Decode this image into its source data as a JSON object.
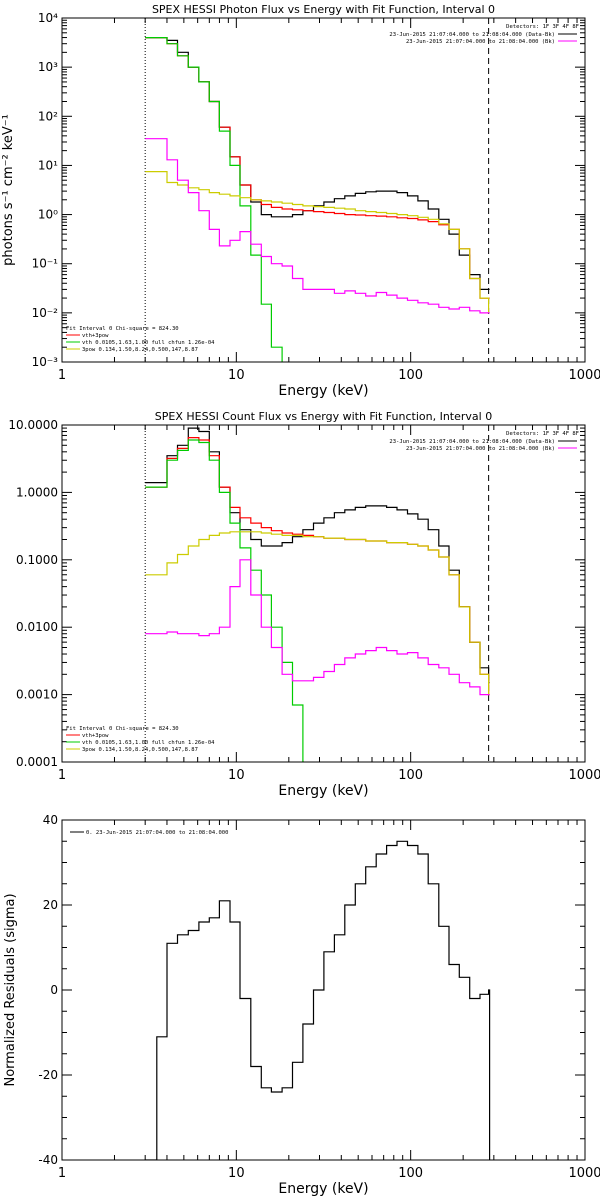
{
  "chart_data": [
    {
      "type": "line",
      "title": "SPEX HESSI Photon Flux vs Energy with Fit Function, Interval 0",
      "xlabel": "Energy (keV)",
      "ylabel": "photons s⁻¹ cm⁻² keV⁻¹",
      "xscale": "log",
      "yscale": "log",
      "xlim": [
        1,
        1000
      ],
      "ylim": [
        0.001,
        10000
      ],
      "xticks": [
        {
          "v": 1,
          "label": "1"
        },
        {
          "v": 10,
          "label": "10"
        },
        {
          "v": 100,
          "label": "100"
        },
        {
          "v": 1000,
          "label": "1000"
        }
      ],
      "yticks": [
        {
          "v": 0.001,
          "label": "10⁻³"
        },
        {
          "v": 0.01,
          "label": "10⁻²"
        },
        {
          "v": 0.1,
          "label": "10⁻¹"
        },
        {
          "v": 1,
          "label": "10⁰"
        },
        {
          "v": 10,
          "label": "10¹"
        },
        {
          "v": 100,
          "label": "10²"
        },
        {
          "v": 1000,
          "label": "10³"
        },
        {
          "v": 10000,
          "label": "10⁴"
        }
      ],
      "vlines": [
        {
          "x": 3,
          "style": "dotted"
        },
        {
          "x": 280,
          "style": "dashed"
        }
      ],
      "legend_right": {
        "placement": "top-right",
        "header": "Detectors: 1F 3F 4F 8F",
        "items": [
          {
            "text": "23-Jun-2015 21:07:04.000 to 21:08:04.000 (Data-Bk)",
            "color": "#000000"
          },
          {
            "text": "23-Jun-2015 21:07:04.000 to 21:08:04.000 (Bk)",
            "color": "#ff00ff"
          }
        ]
      },
      "legend_left": {
        "placement": "bottom-left",
        "header": "Fit Interval 0   Chi-square = 824.30",
        "items": [
          {
            "text": "vth+3pow",
            "color": "#ff0000"
          },
          {
            "text": "vth 0.0105,1.63,1.00  full chfun 1.26e-04",
            "color": "#00cc00"
          },
          {
            "text": "3pow 0.134,1.50,8.24,0.500,147,8.87",
            "color": "#cccc00"
          }
        ]
      },
      "series": [
        {
          "color": "#000000",
          "x": [
            3.0,
            3.5,
            4.0,
            4.6,
            5.3,
            6.1,
            7.0,
            8.0,
            9.2,
            10.5,
            12.1,
            13.9,
            15.9,
            18.3,
            21.0,
            24.1,
            27.7,
            31.8,
            36.5,
            41.9,
            48.1,
            55.2,
            63.4,
            72.8,
            83.5,
            95.9,
            110,
            126,
            145,
            166,
            190,
            218,
            250,
            280
          ],
          "y": [
            4000,
            4000,
            3500,
            2000,
            1000,
            500,
            200,
            60,
            15,
            4,
            1.8,
            1.0,
            0.9,
            0.9,
            1.0,
            1.2,
            1.5,
            1.8,
            2.1,
            2.4,
            2.7,
            2.9,
            3.0,
            3.0,
            2.8,
            2.4,
            1.9,
            1.3,
            0.8,
            0.4,
            0.15,
            0.06,
            0.03,
            0.03
          ]
        },
        {
          "color": "#ff0000",
          "x": [
            3.0,
            3.5,
            4.0,
            4.6,
            5.3,
            6.1,
            7.0,
            8.0,
            9.2,
            10.5,
            12.1,
            13.9,
            15.9,
            18.3,
            21.0,
            24.1,
            27.7,
            31.8,
            36.5,
            41.9,
            48.1,
            55.2,
            63.4,
            72.8,
            83.5,
            95.9,
            110,
            126,
            145,
            166,
            190,
            218,
            250,
            280
          ],
          "y": [
            4000,
            4000,
            3000,
            1700,
            1000,
            500,
            200,
            60,
            15,
            4,
            2.0,
            1.6,
            1.4,
            1.3,
            1.25,
            1.2,
            1.15,
            1.1,
            1.05,
            1.0,
            0.98,
            0.95,
            0.93,
            0.9,
            0.86,
            0.83,
            0.78,
            0.72,
            0.62,
            0.5,
            0.2,
            0.05,
            0.02,
            0.02
          ]
        },
        {
          "color": "#00cc00",
          "x": [
            3.0,
            3.5,
            4.0,
            4.6,
            5.3,
            6.1,
            7.0,
            8.0,
            9.2,
            10.5,
            12.1,
            13.9,
            15.9,
            18.3
          ],
          "y": [
            4000,
            4000,
            3000,
            1700,
            1000,
            500,
            200,
            50,
            10,
            1.5,
            0.15,
            0.015,
            0.002,
            0.0002
          ]
        },
        {
          "color": "#cccc00",
          "x": [
            3.0,
            3.5,
            4.0,
            4.6,
            5.3,
            6.1,
            7.0,
            8.0,
            9.2,
            10.5,
            12.1,
            13.9,
            15.9,
            18.3,
            21.0,
            24.1,
            27.7,
            31.8,
            36.5,
            41.9,
            48.1,
            55.2,
            63.4,
            72.8,
            83.5,
            95.9,
            110,
            126,
            145,
            166,
            190,
            218,
            250,
            280
          ],
          "y": [
            7.5,
            7.5,
            4.5,
            4.0,
            3.5,
            3.2,
            2.8,
            2.6,
            2.4,
            2.2,
            2.0,
            1.9,
            1.8,
            1.7,
            1.6,
            1.5,
            1.45,
            1.4,
            1.35,
            1.3,
            1.2,
            1.15,
            1.1,
            1.05,
            1.0,
            0.95,
            0.88,
            0.8,
            0.65,
            0.5,
            0.2,
            0.05,
            0.02,
            0.01
          ]
        },
        {
          "color": "#ff00ff",
          "x": [
            3.0,
            3.5,
            4.0,
            4.6,
            5.3,
            6.1,
            7.0,
            8.0,
            9.2,
            10.5,
            12.1,
            13.9,
            15.9,
            18.3,
            21.0,
            24.1,
            27.7,
            31.8,
            36.5,
            41.9,
            48.1,
            55.2,
            63.4,
            72.8,
            83.5,
            95.9,
            110,
            126,
            145,
            166,
            190,
            218,
            250,
            280
          ],
          "y": [
            35,
            35,
            13,
            5,
            2.8,
            1.2,
            0.5,
            0.23,
            0.3,
            0.45,
            0.25,
            0.14,
            0.1,
            0.09,
            0.05,
            0.03,
            0.03,
            0.03,
            0.025,
            0.028,
            0.025,
            0.022,
            0.026,
            0.023,
            0.02,
            0.018,
            0.016,
            0.015,
            0.013,
            0.012,
            0.013,
            0.011,
            0.01,
            0.01
          ]
        }
      ]
    },
    {
      "type": "line",
      "title": "SPEX HESSI Count Flux vs Energy with Fit Function, Interval 0",
      "xlabel": "Energy (keV)",
      "ylabel": "",
      "xscale": "log",
      "yscale": "log",
      "xlim": [
        1,
        1000
      ],
      "ylim": [
        0.0001,
        10
      ],
      "xticks": [
        {
          "v": 1,
          "label": "1"
        },
        {
          "v": 10,
          "label": "10"
        },
        {
          "v": 100,
          "label": "100"
        },
        {
          "v": 1000,
          "label": "1000"
        }
      ],
      "yticks": [
        {
          "v": 0.0001,
          "label": "0.0001"
        },
        {
          "v": 0.001,
          "label": "0.0010"
        },
        {
          "v": 0.01,
          "label": "0.0100"
        },
        {
          "v": 0.1,
          "label": "0.1000"
        },
        {
          "v": 1,
          "label": "1.0000"
        },
        {
          "v": 10,
          "label": "10.0000"
        }
      ],
      "vlines": [
        {
          "x": 3,
          "style": "dotted"
        },
        {
          "x": 280,
          "style": "dashed"
        }
      ],
      "legend_right": {
        "placement": "top-right",
        "header": "Detectors: 1F 3F 4F 8F",
        "items": [
          {
            "text": "23-Jun-2015 21:07:04.000 to 21:08:04.000 (Data-Bk)",
            "color": "#000000"
          },
          {
            "text": "23-Jun-2015 21:07:04.000 to 21:08:04.000 (Bk)",
            "color": "#ff00ff"
          }
        ]
      },
      "legend_left": {
        "placement": "bottom-left",
        "header": "Fit Interval 0   Chi-square = 824.30",
        "items": [
          {
            "text": "vth+3pow",
            "color": "#ff0000"
          },
          {
            "text": "vth 0.0105,1.63,1.00  full chfun 1.26e-04",
            "color": "#00cc00"
          },
          {
            "text": "3pow 0.134,1.50,8.24,0.500,147,8.87",
            "color": "#cccc00"
          }
        ]
      },
      "series": [
        {
          "color": "#000000",
          "x": [
            3.0,
            3.5,
            4.0,
            4.6,
            5.3,
            6.1,
            7.0,
            8.0,
            9.2,
            10.5,
            12.1,
            13.9,
            15.9,
            18.3,
            21.0,
            24.1,
            27.7,
            31.8,
            36.5,
            41.9,
            48.1,
            55.2,
            63.4,
            72.8,
            83.5,
            95.9,
            110,
            126,
            145,
            166,
            190,
            218,
            250,
            280
          ],
          "y": [
            1.4,
            1.4,
            3.5,
            5.0,
            9.0,
            8.0,
            4.0,
            1.2,
            0.5,
            0.28,
            0.2,
            0.16,
            0.16,
            0.18,
            0.22,
            0.28,
            0.35,
            0.42,
            0.5,
            0.55,
            0.6,
            0.63,
            0.63,
            0.6,
            0.55,
            0.48,
            0.4,
            0.28,
            0.16,
            0.07,
            0.02,
            0.006,
            0.0025,
            0.0015
          ]
        },
        {
          "color": "#ff0000",
          "x": [
            3.0,
            3.5,
            4.0,
            4.6,
            5.3,
            6.1,
            7.0,
            8.0,
            9.2,
            10.5,
            12.1,
            13.9,
            15.9,
            18.3,
            21.0,
            24.1,
            27.7,
            31.8,
            36.5,
            41.9,
            48.1,
            55.2,
            63.4,
            72.8,
            83.5,
            95.9,
            110,
            126,
            145,
            166,
            190,
            218,
            250,
            280
          ],
          "y": [
            1.2,
            1.2,
            3.2,
            4.5,
            6.5,
            6.0,
            3.5,
            1.2,
            0.6,
            0.42,
            0.35,
            0.3,
            0.27,
            0.25,
            0.24,
            0.23,
            0.22,
            0.21,
            0.21,
            0.2,
            0.2,
            0.19,
            0.19,
            0.18,
            0.18,
            0.17,
            0.16,
            0.14,
            0.11,
            0.06,
            0.02,
            0.006,
            0.002,
            0.001
          ]
        },
        {
          "color": "#00cc00",
          "x": [
            3.0,
            3.5,
            4.0,
            4.6,
            5.3,
            6.1,
            7.0,
            8.0,
            9.2,
            10.5,
            12.1,
            13.9,
            15.9,
            18.3,
            21.0,
            24.1
          ],
          "y": [
            1.2,
            1.2,
            3.0,
            4.2,
            6.0,
            5.5,
            3.0,
            1.0,
            0.35,
            0.15,
            0.07,
            0.03,
            0.01,
            0.003,
            0.0007,
            0.0001
          ]
        },
        {
          "color": "#cccc00",
          "x": [
            3.0,
            3.5,
            4.0,
            4.6,
            5.3,
            6.1,
            7.0,
            8.0,
            9.2,
            10.5,
            12.1,
            13.9,
            15.9,
            18.3,
            21.0,
            24.1,
            27.7,
            31.8,
            36.5,
            41.9,
            48.1,
            55.2,
            63.4,
            72.8,
            83.5,
            95.9,
            110,
            126,
            145,
            166,
            190,
            218,
            250,
            280
          ],
          "y": [
            0.06,
            0.06,
            0.09,
            0.12,
            0.16,
            0.2,
            0.23,
            0.25,
            0.26,
            0.26,
            0.26,
            0.25,
            0.24,
            0.23,
            0.23,
            0.22,
            0.22,
            0.21,
            0.21,
            0.2,
            0.2,
            0.19,
            0.19,
            0.18,
            0.18,
            0.17,
            0.16,
            0.14,
            0.11,
            0.06,
            0.02,
            0.006,
            0.002,
            0.001
          ]
        },
        {
          "color": "#ff00ff",
          "x": [
            3.0,
            3.5,
            4.0,
            4.6,
            5.3,
            6.1,
            7.0,
            8.0,
            9.2,
            10.5,
            12.1,
            13.9,
            15.9,
            18.3,
            21.0,
            24.1,
            27.7,
            31.8,
            36.5,
            41.9,
            48.1,
            55.2,
            63.4,
            72.8,
            83.5,
            95.9,
            110,
            126,
            145,
            166,
            190,
            218,
            250,
            280
          ],
          "y": [
            0.008,
            0.008,
            0.0085,
            0.008,
            0.008,
            0.0075,
            0.008,
            0.01,
            0.04,
            0.1,
            0.03,
            0.01,
            0.005,
            0.002,
            0.0016,
            0.0016,
            0.0018,
            0.0022,
            0.0028,
            0.0035,
            0.004,
            0.0045,
            0.005,
            0.0045,
            0.004,
            0.0042,
            0.0035,
            0.0028,
            0.0025,
            0.002,
            0.0015,
            0.0013,
            0.001,
            0.001
          ]
        }
      ]
    },
    {
      "type": "line",
      "title": "",
      "xlabel": "Energy (keV)",
      "ylabel": "Normalized Residuals (sigma)",
      "xscale": "log",
      "yscale": "linear",
      "xlim": [
        1,
        1000
      ],
      "ylim": [
        -40,
        40
      ],
      "xticks": [
        {
          "v": 1,
          "label": "1"
        },
        {
          "v": 10,
          "label": "10"
        },
        {
          "v": 100,
          "label": "100"
        },
        {
          "v": 1000,
          "label": "1000"
        }
      ],
      "yticks": [
        {
          "v": -40,
          "label": "-40"
        },
        {
          "v": -20,
          "label": "-20"
        },
        {
          "v": 0,
          "label": "0"
        },
        {
          "v": 20,
          "label": "20"
        },
        {
          "v": 40,
          "label": "40"
        }
      ],
      "vlines": [],
      "legend_right": null,
      "legend_left": {
        "placement": "top-left",
        "header": "",
        "items": [
          {
            "text": "0. 23-Jun-2015 21:07:04.000 to 21:08:04.000",
            "color": "#000000"
          }
        ]
      },
      "series": [
        {
          "color": "#000000",
          "x": [
            3.0,
            3.5,
            4.0,
            4.6,
            5.3,
            6.1,
            7.0,
            8.0,
            9.2,
            10.5,
            12.1,
            13.9,
            15.9,
            18.3,
            21.0,
            24.1,
            27.7,
            31.8,
            36.5,
            41.9,
            48.1,
            55.2,
            63.4,
            72.8,
            83.5,
            95.9,
            110,
            126,
            145,
            166,
            190,
            218,
            250,
            280
          ],
          "y": [
            -40,
            -11,
            11,
            13,
            14,
            16,
            17,
            21,
            16,
            -2,
            -18,
            -23,
            -24,
            -23,
            -17,
            -8,
            0,
            9,
            13,
            20,
            25,
            29,
            32,
            34,
            35,
            34,
            32,
            25,
            15,
            6,
            3,
            -2,
            -1,
            0
          ]
        }
      ]
    }
  ]
}
